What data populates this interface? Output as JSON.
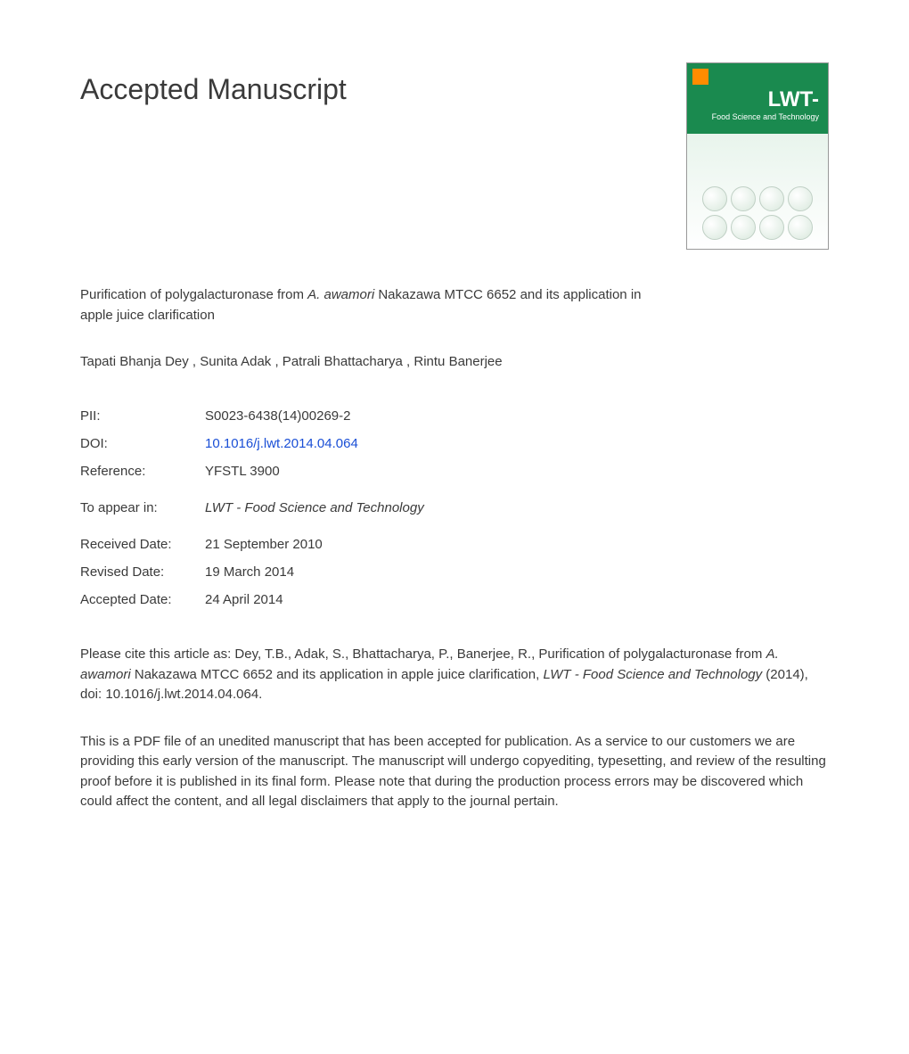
{
  "heading": "Accepted Manuscript",
  "journal_cover": {
    "title": "LWT-",
    "subtitle": "Food Science and Technology"
  },
  "article": {
    "title_prefix": "Purification of polygalacturonase from ",
    "title_italic": "A. awamori",
    "title_suffix": " Nakazawa MTCC 6652 and its application in apple juice clarification"
  },
  "authors": "Tapati Bhanja Dey , Sunita Adak , Patrali Bhattacharya , Rintu Banerjee",
  "meta": {
    "pii": {
      "label": "PII:",
      "value": "S0023-6438(14)00269-2"
    },
    "doi": {
      "label": "DOI:",
      "value": "10.1016/j.lwt.2014.04.064"
    },
    "reference": {
      "label": "Reference:",
      "value": "YFSTL 3900"
    },
    "to_appear": {
      "label": "To appear in:",
      "value": "LWT - Food Science and Technology"
    },
    "received": {
      "label": "Received Date:",
      "value": "21 September 2010"
    },
    "revised": {
      "label": "Revised Date:",
      "value": "19 March 2014"
    },
    "accepted": {
      "label": "Accepted Date:",
      "value": "24 April 2014"
    }
  },
  "citation": {
    "prefix": "Please cite this article as: Dey, T.B., Adak, S., Bhattacharya, P., Banerjee, R., Purification of polygalacturonase from ",
    "italic1": "A. awamori",
    "mid": " Nakazawa MTCC 6652 and its application in apple juice clarification, ",
    "italic2": "LWT - Food Science and Technology",
    "suffix": " (2014), doi: 10.1016/j.lwt.2014.04.064."
  },
  "disclaimer": "This is a PDF file of an unedited manuscript that has been accepted for publication. As a service to our customers we are providing this early version of the manuscript. The manuscript will undergo copyediting, typesetting, and review of the resulting proof before it is published in its final form. Please note that during the production process errors may be discovered which could affect the content, and all legal disclaimers that apply to the journal pertain.",
  "colors": {
    "text": "#3a3a3a",
    "link": "#1a4fd6",
    "cover_green": "#1a8a4f",
    "background": "#ffffff"
  },
  "typography": {
    "heading_fontsize": 32,
    "body_fontsize": 15,
    "font_family": "Arial"
  }
}
